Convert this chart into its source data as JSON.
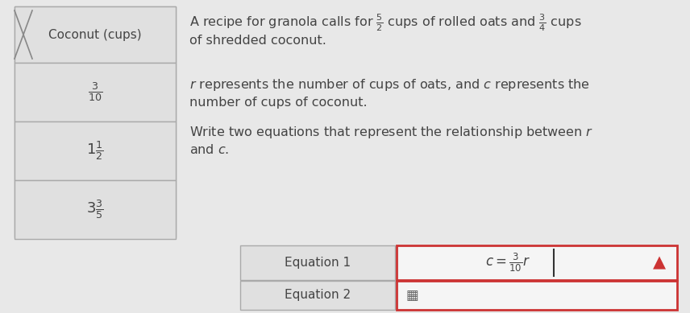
{
  "bg_color": "#e8e8e8",
  "left_panel_bg": "#e0e0e0",
  "left_panel_border": "#aaaaaa",
  "left_header": "Coconut (cups)",
  "left_rows": [
    "\\frac{3}{10}",
    "1\\frac{1}{2}",
    "3\\frac{3}{5}"
  ],
  "right_text_line1": "A recipe for granola calls for $\\frac{5}{2}$ cups of rolled oats and $\\frac{3}{4}$ cups",
  "right_text_line2": "of shredded coconut.",
  "middle_text_line1": "$r$ represents the number of cups of oats, and $c$ represents the",
  "middle_text_line2": "number of cups of coconut.",
  "write_text_line1": "Write two equations that represent the relationship between $r$",
  "write_text_line2": "and $c$.",
  "eq1_label": "Equation 1",
  "eq1_answer": "$c = \\frac{3}{10}r$",
  "eq2_label": "Equation 2",
  "answer_box_fill": "#f5f5f5",
  "answer_box_border": "#cc3333",
  "label_box_fill": "#e0e0e0",
  "label_box_border": "#aaaaaa",
  "warning_color": "#cc3333",
  "text_color": "#444444",
  "font_size_main": 11.5,
  "font_size_header": 11,
  "font_size_rows": 13,
  "font_size_eq": 11
}
